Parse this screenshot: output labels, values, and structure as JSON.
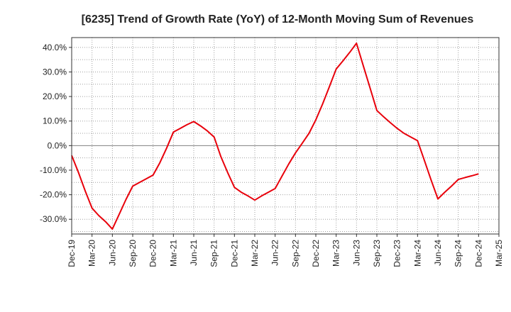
{
  "chart_data": {
    "type": "line",
    "title": "[6235]  Trend of Growth Rate (YoY) of 12-Month Moving Sum of Revenues",
    "xlabel": "",
    "ylabel": "",
    "categories": [
      "Dec-19",
      "Mar-20",
      "Jun-20",
      "Sep-20",
      "Dec-20",
      "Mar-21",
      "Jun-21",
      "Sep-21",
      "Dec-21",
      "Mar-22",
      "Jun-22",
      "Sep-22",
      "Dec-22",
      "Mar-23",
      "Jun-23",
      "Sep-23",
      "Dec-23",
      "Mar-24",
      "Jun-24",
      "Sep-24",
      "Dec-24",
      "Mar-25"
    ],
    "ytick_labels": [
      "40.0%",
      "30.0%",
      "20.0%",
      "10.0%",
      "0.0%",
      "-10.0%",
      "-20.0%",
      "-30.0%"
    ],
    "ytick_values": [
      40,
      30,
      20,
      10,
      0,
      -10,
      -20,
      -30
    ],
    "ylim": [
      -36,
      44
    ],
    "grid": true,
    "series": [
      {
        "color": "#e8000b",
        "x": [
          "Dec-19",
          "Jan-20",
          "Feb-20",
          "Mar-20",
          "Apr-20",
          "May-20",
          "Jun-20",
          "Jul-20",
          "Aug-20",
          "Sep-20",
          "Oct-20",
          "Nov-20",
          "Dec-20",
          "Jan-21",
          "Feb-21",
          "Mar-21",
          "Apr-21",
          "May-21",
          "Jun-21",
          "Jul-21",
          "Aug-21",
          "Sep-21",
          "Oct-21",
          "Nov-21",
          "Dec-21",
          "Jan-22",
          "Feb-22",
          "Mar-22",
          "Apr-22",
          "May-22",
          "Jun-22",
          "Jul-22",
          "Aug-22",
          "Sep-22",
          "Oct-22",
          "Nov-22",
          "Dec-22",
          "Jan-23",
          "Feb-23",
          "Mar-23",
          "Apr-23",
          "May-23",
          "Jun-23",
          "Jul-23",
          "Aug-23",
          "Sep-23",
          "Oct-23",
          "Nov-23",
          "Dec-23",
          "Jan-24",
          "Feb-24",
          "Mar-24",
          "Apr-24",
          "May-24",
          "Jun-24",
          "Jul-24",
          "Aug-24",
          "Sep-24",
          "Oct-24",
          "Nov-24",
          "Dec-24"
        ],
        "values": [
          -4,
          -11,
          -18.5,
          -25.5,
          -28.5,
          -31,
          -34,
          -28,
          -22,
          -16.5,
          -15,
          -13.5,
          -12,
          -7,
          -1,
          5.5,
          7,
          8.5,
          9.8,
          8,
          6,
          3.5,
          -4.5,
          -11,
          -17,
          -19,
          -20.5,
          -22.2,
          -20.5,
          -19,
          -17.5,
          -12.5,
          -7.5,
          -3,
          1,
          5,
          10.5,
          17,
          24,
          31.2,
          34.5,
          38,
          41.7,
          32.5,
          23.5,
          14.3,
          11.7,
          9.3,
          7,
          5,
          3.5,
          2,
          -6,
          -14,
          -21.7,
          -19,
          -16.5,
          -13.8,
          -13,
          -12.3,
          -11.5
        ]
      }
    ],
    "colors": {
      "line": "#e8000b",
      "grid": "#a0a0a0",
      "axis": "#333333",
      "zero_line": "#808080"
    }
  }
}
